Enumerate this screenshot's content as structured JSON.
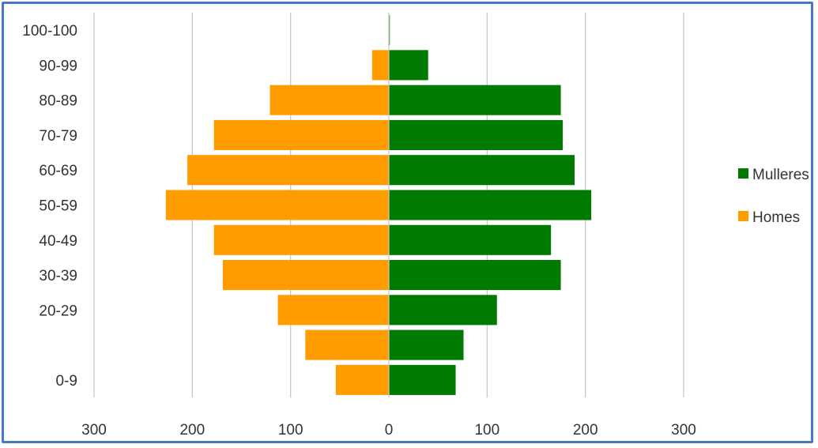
{
  "chart_data": {
    "type": "bar",
    "orientation": "horizontal",
    "subtype": "population-pyramid",
    "categories": [
      "0-9",
      "",
      "20-29",
      "30-39",
      "40-49",
      "50-59",
      "60-69",
      "70-79",
      "80-89",
      "90-99",
      "100-100"
    ],
    "series": [
      {
        "name": "Mulleres",
        "side": "right",
        "color": "#007a00",
        "values": [
          68,
          76,
          110,
          175,
          165,
          206,
          189,
          177,
          175,
          40,
          1
        ]
      },
      {
        "name": "Homes",
        "side": "left",
        "color": "#ff9c00",
        "values": [
          54,
          85,
          113,
          169,
          178,
          227,
          205,
          178,
          121,
          17,
          0
        ]
      }
    ],
    "xlim": [
      -300,
      300
    ],
    "x_ticks": [
      -300,
      -200,
      -100,
      0,
      100,
      200,
      300
    ],
    "x_tick_labels": [
      "300",
      "200",
      "100",
      "0",
      "100",
      "200",
      "300"
    ],
    "grid": "vertical",
    "legend": "right",
    "title": "",
    "xlabel": "",
    "ylabel": ""
  }
}
